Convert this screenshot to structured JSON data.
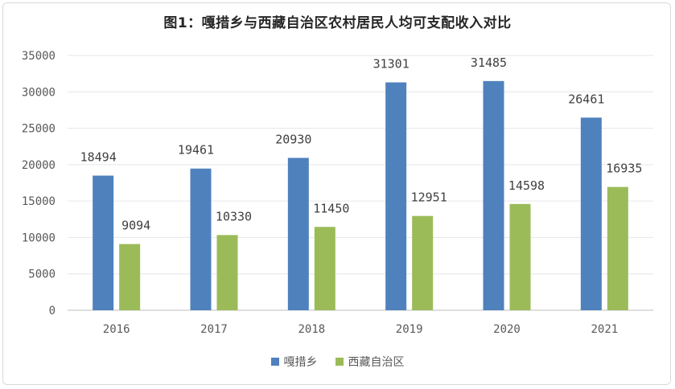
{
  "chart_data": {
    "type": "bar",
    "title": "图1：嘎措乡与西藏自治区农村居民人均可支配收入对比",
    "categories": [
      "2016",
      "2017",
      "2018",
      "2019",
      "2020",
      "2021"
    ],
    "series": [
      {
        "name": "嘎措乡",
        "color": "#4f81bd",
        "values": [
          18494,
          19461,
          20930,
          31301,
          31485,
          26461
        ]
      },
      {
        "name": "西藏自治区",
        "color": "#9bbb59",
        "values": [
          9094,
          10330,
          11450,
          12951,
          14598,
          16935
        ]
      }
    ],
    "yticks": [
      "0",
      "5000",
      "10000",
      "15000",
      "20000",
      "25000",
      "30000",
      "35000"
    ],
    "ylim": [
      0,
      35000
    ],
    "grid": true,
    "legend": "bottom"
  }
}
